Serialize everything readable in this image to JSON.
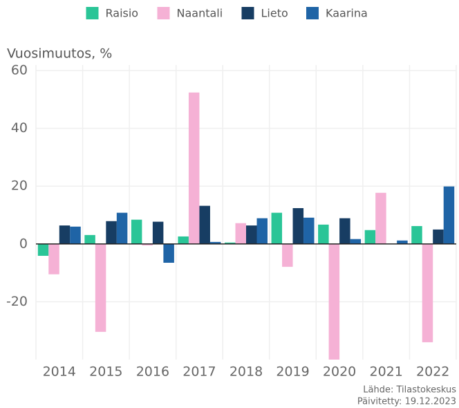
{
  "chart_data": {
    "type": "bar",
    "y_label": "Vuosimuutos, %",
    "categories": [
      "2014",
      "2015",
      "2016",
      "2017",
      "2018",
      "2019",
      "2020",
      "2021",
      "2022"
    ],
    "series": [
      {
        "name": "Raisio",
        "color": "#2ac597",
        "values": [
          -4.1,
          3.1,
          8.4,
          2.6,
          0.5,
          10.8,
          6.7,
          4.8,
          6.2
        ]
      },
      {
        "name": "Naantali",
        "color": "#f5b1d5",
        "values": [
          -10.5,
          -30.4,
          -0.5,
          52.4,
          7.2,
          -7.9,
          -40,
          17.7,
          -34
        ]
      },
      {
        "name": "Lieto",
        "color": "#173d63",
        "values": [
          6.4,
          7.9,
          7.7,
          13.2,
          6.4,
          12.4,
          8.9,
          0,
          5.0
        ]
      },
      {
        "name": "Kaarina",
        "color": "#1f64a6",
        "values": [
          6.0,
          10.8,
          -6.5,
          0.7,
          8.9,
          9.1,
          1.7,
          1.2,
          19.9
        ]
      }
    ],
    "ylim": [
      -40,
      60
    ],
    "yticks": [
      -20,
      0,
      20,
      40,
      60
    ],
    "grid": true,
    "source": "Lähde: Tilastokeskus",
    "updated": "Päivitetty: 19.12.2023"
  }
}
